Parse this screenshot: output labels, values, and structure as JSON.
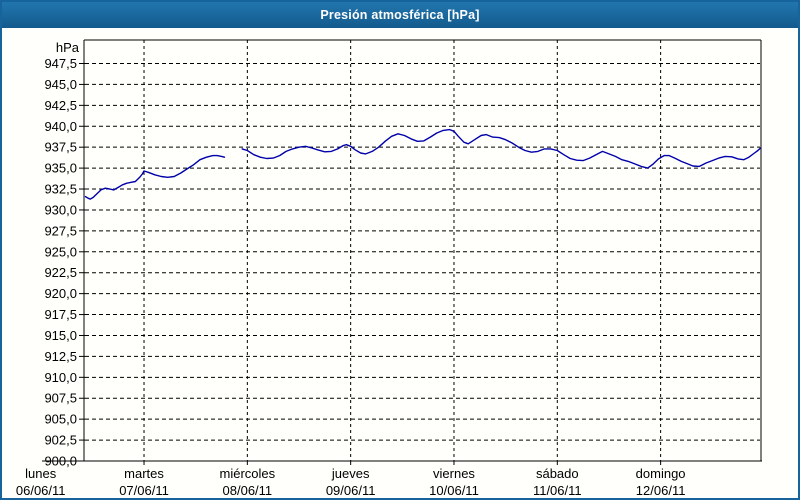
{
  "window": {
    "title": "Presión atmosférica [hPa]",
    "titlebar_color_top": "#2176ae",
    "titlebar_color_bottom": "#135a8d",
    "border_color": "#17639b"
  },
  "chart_data": {
    "type": "line",
    "title": "Presión atmosférica [hPa]",
    "unit_label": "hPa",
    "ylabel": "hPa",
    "ylim": [
      900,
      950
    ],
    "grid": "dashed",
    "legend": "none",
    "line_color": "#0000aa",
    "background_color": "#fffffb",
    "y_ticks": [
      947.5,
      945.0,
      942.5,
      940.0,
      937.5,
      935.0,
      932.5,
      930.0,
      927.5,
      925.0,
      922.5,
      920.0,
      917.5,
      915.0,
      912.5,
      910.0,
      907.5,
      905.0,
      902.5,
      900.0
    ],
    "y_tick_labels": [
      "947,5",
      "945,0",
      "942,5",
      "940,0",
      "937,5",
      "935,0",
      "932,5",
      "930,0",
      "927,5",
      "925,0",
      "922,5",
      "920,0",
      "917,5",
      "915,0",
      "912,5",
      "910,0",
      "907,5",
      "905,0",
      "902,5",
      "900,0"
    ],
    "x_axis": {
      "hours_per_day": 24,
      "total_hours": 168,
      "days": [
        {
          "name": "lunes",
          "date": "06/06/11"
        },
        {
          "name": "martes",
          "date": "07/06/11"
        },
        {
          "name": "miércoles",
          "date": "08/06/11"
        },
        {
          "name": "jueves",
          "date": "09/06/11"
        },
        {
          "name": "viernes",
          "date": "10/06/11"
        },
        {
          "name": "sábado",
          "date": "11/06/11"
        },
        {
          "name": "domingo",
          "date": "12/06/11"
        }
      ]
    },
    "series": [
      {
        "name": "Presión atmosférica",
        "unit": "hPa",
        "segments": [
          [
            [
              10.4,
              931.6
            ],
            [
              11,
              931.4
            ],
            [
              11.5,
              931.3
            ],
            [
              12.2,
              931.5
            ],
            [
              13,
              931.9
            ],
            [
              14,
              932.4
            ],
            [
              15,
              932.6
            ],
            [
              16,
              932.5
            ],
            [
              17,
              932.4
            ],
            [
              18,
              932.7
            ],
            [
              19,
              933.0
            ],
            [
              20,
              933.2
            ],
            [
              21,
              933.3
            ],
            [
              22,
              933.4
            ],
            [
              23,
              933.9
            ],
            [
              23.6,
              934.3
            ],
            [
              24,
              934.65
            ],
            [
              25,
              934.5
            ],
            [
              26.5,
              934.2
            ],
            [
              28,
              934.0
            ],
            [
              29.5,
              933.9
            ],
            [
              31,
              934.0
            ],
            [
              32.5,
              934.4
            ],
            [
              34,
              934.9
            ],
            [
              35.5,
              935.4
            ],
            [
              37,
              936.0
            ],
            [
              38.5,
              936.3
            ],
            [
              40,
              936.5
            ],
            [
              41,
              936.5
            ],
            [
              42,
              936.4
            ],
            [
              42.7,
              936.3
            ]
          ],
          [
            [
              46.8,
              937.3
            ],
            [
              48,
              937.1
            ],
            [
              49.5,
              936.6
            ],
            [
              51,
              936.3
            ],
            [
              52.5,
              936.15
            ],
            [
              54,
              936.2
            ],
            [
              55.5,
              936.5
            ],
            [
              57,
              937.0
            ],
            [
              58.5,
              937.3
            ],
            [
              60,
              937.5
            ],
            [
              61.5,
              937.6
            ],
            [
              63,
              937.4
            ],
            [
              64.5,
              937.15
            ],
            [
              66,
              936.95
            ],
            [
              67.5,
              937.0
            ],
            [
              69,
              937.3
            ],
            [
              70.3,
              937.7
            ],
            [
              71,
              937.8
            ],
            [
              72,
              937.6
            ],
            [
              73,
              937.2
            ],
            [
              74.3,
              936.8
            ],
            [
              75.5,
              936.7
            ],
            [
              77,
              937.0
            ],
            [
              78.5,
              937.5
            ],
            [
              80,
              938.2
            ],
            [
              81.5,
              938.8
            ],
            [
              83,
              939.1
            ],
            [
              84.5,
              938.9
            ],
            [
              86,
              938.5
            ],
            [
              87.5,
              938.2
            ],
            [
              89,
              938.25
            ],
            [
              90.5,
              938.7
            ],
            [
              92,
              939.2
            ],
            [
              93.5,
              939.5
            ],
            [
              95,
              939.6
            ],
            [
              96,
              939.4
            ],
            [
              97,
              938.8
            ],
            [
              98.3,
              938.1
            ],
            [
              99.3,
              937.9
            ],
            [
              100.8,
              938.4
            ],
            [
              102.3,
              938.9
            ],
            [
              103.5,
              939.0
            ],
            [
              105,
              938.7
            ],
            [
              106.5,
              938.65
            ],
            [
              108,
              938.4
            ],
            [
              109.5,
              938.0
            ],
            [
              111,
              937.5
            ],
            [
              112.5,
              937.1
            ],
            [
              114,
              936.9
            ],
            [
              115.5,
              937.0
            ],
            [
              117,
              937.3
            ],
            [
              118.5,
              937.3
            ],
            [
              120,
              937.1
            ],
            [
              121.5,
              936.6
            ],
            [
              123,
              936.15
            ],
            [
              124.5,
              935.95
            ],
            [
              126,
              935.9
            ],
            [
              127.5,
              936.2
            ],
            [
              129,
              936.6
            ],
            [
              130.5,
              937.0
            ],
            [
              132,
              936.7
            ],
            [
              133.5,
              936.4
            ],
            [
              135,
              936.0
            ],
            [
              136.5,
              935.8
            ],
            [
              138,
              935.5
            ],
            [
              139.5,
              935.2
            ],
            [
              141,
              935.0
            ],
            [
              142.3,
              935.5
            ],
            [
              143.5,
              936.1
            ],
            [
              144.8,
              936.5
            ],
            [
              146,
              936.5
            ],
            [
              147.3,
              936.2
            ],
            [
              148.8,
              935.8
            ],
            [
              150.3,
              935.5
            ],
            [
              151.5,
              935.25
            ],
            [
              153,
              935.2
            ],
            [
              154.5,
              935.6
            ],
            [
              156,
              935.9
            ],
            [
              157.5,
              936.2
            ],
            [
              159,
              936.4
            ],
            [
              160.5,
              936.35
            ],
            [
              162,
              936.1
            ],
            [
              163.3,
              936.0
            ],
            [
              164.5,
              936.3
            ],
            [
              165.8,
              936.8
            ],
            [
              166.6,
              937.1
            ],
            [
              167.2,
              937.4
            ]
          ]
        ]
      }
    ]
  }
}
